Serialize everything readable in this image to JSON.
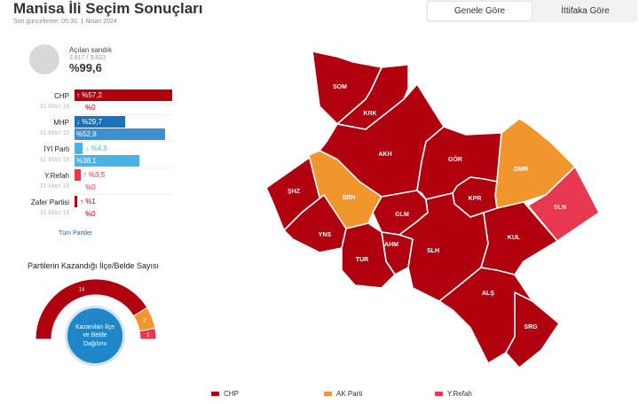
{
  "header": {
    "title": "Manisa İli Seçim Sonuçları",
    "updated": "Son güncelleme: 05:30, 1 Nisan 2024"
  },
  "tabs": [
    {
      "label": "Genele Göre",
      "active": true
    },
    {
      "label": "İttifaka Göre",
      "active": false
    }
  ],
  "ballots": {
    "label": "Açılan sandık",
    "count": "3.817 / 3.833",
    "percent": "%99,6",
    "opened_fraction": 0.996
  },
  "parties": [
    {
      "name": "CHP",
      "prev_label": "31 Mart 19",
      "now_text": "↑ %57,2",
      "prev_text": "%0",
      "now_value": 57.2,
      "prev_value": 0,
      "color_now": "#b0000f",
      "color_prev": "#b0000f"
    },
    {
      "name": "MHP",
      "prev_label": "31 Mart 19",
      "now_text": "↓ %29,7",
      "prev_text": "%52,8",
      "now_value": 29.7,
      "prev_value": 52.8,
      "color_now": "#1a72b8",
      "color_prev": "#3d8fcf"
    },
    {
      "name": "İYİ Parti",
      "prev_label": "31 Mart 19",
      "now_text": "↓ %4,9",
      "prev_text": "%38,1",
      "now_value": 4.9,
      "prev_value": 38.1,
      "color_now": "#4ab3e6",
      "color_prev": "#4ab3e6"
    },
    {
      "name": "Y.Refah",
      "prev_label": "31 Mart 19",
      "now_text": "↑ %3,5",
      "prev_text": "%0",
      "now_value": 3.5,
      "prev_value": 0,
      "color_now": "#e8384f",
      "color_prev": "#e8384f"
    },
    {
      "name": "Zafer Partisi",
      "prev_label": "31 Mart 19",
      "now_text": "↑ %1",
      "prev_text": "%0",
      "now_value": 1,
      "prev_value": 0,
      "color_now": "#b0000f",
      "color_prev": "#b0000f"
    }
  ],
  "all_parties_link": "Tüm Partiler",
  "seats": {
    "title": "Partilerin Kazandığı İlçe/Belde Sayısı",
    "center_label": "Kazanılan İlçe ve Belde Dağılımı",
    "segments": [
      {
        "party": "CHP",
        "count": 14,
        "label": "14",
        "color": "#b0000f"
      },
      {
        "party": "AK Parti",
        "count": 2,
        "label": "2",
        "color": "#f0962d"
      },
      {
        "party": "Y.Refah",
        "count": 1,
        "label": "1",
        "color": "#e8384f"
      }
    ]
  },
  "map": {
    "districts": [
      {
        "code": "SOM",
        "winner": "CHP"
      },
      {
        "code": "KRK",
        "winner": "CHP"
      },
      {
        "code": "AKH",
        "winner": "CHP"
      },
      {
        "code": "GÖR",
        "winner": "CHP"
      },
      {
        "code": "DMR",
        "winner": "AK Parti"
      },
      {
        "code": "SLN",
        "winner": "Y.Refah"
      },
      {
        "code": "ŞHZ",
        "winner": "CHP"
      },
      {
        "code": "SRH",
        "winner": "AK Parti"
      },
      {
        "code": "GLM",
        "winner": "CHP"
      },
      {
        "code": "KPR",
        "winner": "CHP"
      },
      {
        "code": "YNS",
        "winner": "CHP"
      },
      {
        "code": "AHM",
        "winner": "CHP"
      },
      {
        "code": "TUR",
        "winner": "CHP"
      },
      {
        "code": "SLH",
        "winner": "CHP"
      },
      {
        "code": "KUL",
        "winner": "CHP"
      },
      {
        "code": "ALŞ",
        "winner": "CHP"
      },
      {
        "code": "SRG",
        "winner": "CHP"
      }
    ]
  },
  "legend": [
    {
      "label": "CHP",
      "color": "#b0000f"
    },
    {
      "label": "AK Parti",
      "color": "#f0962d"
    },
    {
      "label": "Y.Refah",
      "color": "#e8384f"
    }
  ]
}
